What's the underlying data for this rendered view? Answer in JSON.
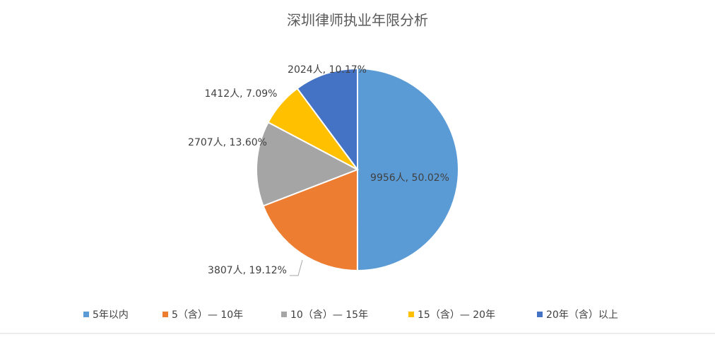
{
  "chart_data": {
    "type": "pie",
    "title": "深圳律师执业年限分析",
    "categories": [
      "5年以内",
      "5（含）— 10年",
      "10（含）— 15年",
      "15（含）— 20年",
      "20年（含）以上"
    ],
    "values": [
      9956,
      3807,
      2707,
      1412,
      2024
    ],
    "value_labels": [
      "9956人, 50.02%",
      "3807人, 19.12%",
      "2707人, 13.60%",
      "1412人, 7.09%",
      "2024人, 10.17%"
    ],
    "colors": [
      "#5b9bd5",
      "#ed7d31",
      "#a5a5a5",
      "#ffc000",
      "#4472c4"
    ],
    "legend": "bottom"
  }
}
